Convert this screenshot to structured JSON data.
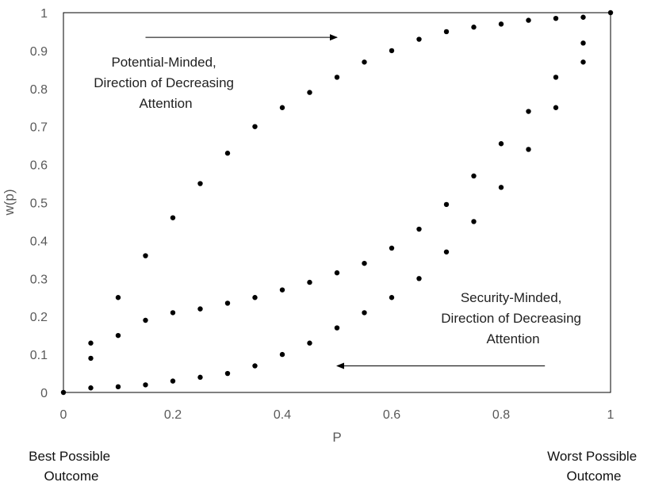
{
  "chart_data": {
    "type": "scatter",
    "xlabel": "P",
    "ylabel": "w(p)",
    "xlim": [
      0,
      1
    ],
    "ylim": [
      0,
      1
    ],
    "x_ticks": [
      "0",
      "0.2",
      "0.4",
      "0.6",
      "0.8",
      "1"
    ],
    "y_ticks": [
      "0",
      "0.1",
      "0.2",
      "0.3",
      "0.4",
      "0.5",
      "0.6",
      "0.7",
      "0.8",
      "0.9",
      "1"
    ],
    "grid": false,
    "series": [
      {
        "values": [
          [
            0,
            0
          ],
          [
            0.05,
            0.13
          ],
          [
            0.1,
            0.25
          ],
          [
            0.15,
            0.36
          ],
          [
            0.2,
            0.46
          ],
          [
            0.25,
            0.55
          ],
          [
            0.3,
            0.63
          ],
          [
            0.35,
            0.7
          ],
          [
            0.4,
            0.75
          ],
          [
            0.45,
            0.79
          ],
          [
            0.5,
            0.83
          ],
          [
            0.55,
            0.87
          ],
          [
            0.6,
            0.9
          ],
          [
            0.65,
            0.93
          ],
          [
            0.7,
            0.95
          ],
          [
            0.75,
            0.962
          ],
          [
            0.8,
            0.97
          ],
          [
            0.85,
            0.98
          ],
          [
            0.9,
            0.985
          ],
          [
            0.95,
            0.988
          ],
          [
            1,
            1
          ]
        ]
      },
      {
        "values": [
          [
            0.05,
            0.09
          ],
          [
            0.1,
            0.15
          ],
          [
            0.15,
            0.19
          ],
          [
            0.2,
            0.21
          ],
          [
            0.25,
            0.22
          ],
          [
            0.3,
            0.235
          ],
          [
            0.35,
            0.25
          ],
          [
            0.4,
            0.27
          ],
          [
            0.45,
            0.29
          ],
          [
            0.5,
            0.315
          ],
          [
            0.55,
            0.34
          ],
          [
            0.6,
            0.38
          ],
          [
            0.65,
            0.43
          ],
          [
            0.7,
            0.495
          ],
          [
            0.75,
            0.57
          ],
          [
            0.8,
            0.655
          ],
          [
            0.85,
            0.74
          ],
          [
            0.9,
            0.83
          ],
          [
            0.95,
            0.92
          ]
        ]
      },
      {
        "values": [
          [
            0.05,
            0.012
          ],
          [
            0.1,
            0.015
          ],
          [
            0.15,
            0.02
          ],
          [
            0.2,
            0.03
          ],
          [
            0.25,
            0.04
          ],
          [
            0.3,
            0.05
          ],
          [
            0.35,
            0.07
          ],
          [
            0.4,
            0.1
          ],
          [
            0.45,
            0.13
          ],
          [
            0.5,
            0.17
          ],
          [
            0.55,
            0.21
          ],
          [
            0.6,
            0.25
          ],
          [
            0.65,
            0.3
          ],
          [
            0.7,
            0.37
          ],
          [
            0.75,
            0.45
          ],
          [
            0.8,
            0.54
          ],
          [
            0.85,
            0.64
          ],
          [
            0.9,
            0.75
          ],
          [
            0.95,
            0.87
          ]
        ]
      }
    ],
    "annotations": {
      "potential": [
        "Potential-Minded,",
        "Direction of Decreasing",
        "Attention"
      ],
      "security": [
        "Security-Minded,",
        "Direction of Decreasing",
        "Attention"
      ],
      "best_outcome": [
        "Best Possible",
        "Outcome"
      ],
      "worst_outcome": [
        "Worst Possible",
        "Outcome"
      ]
    },
    "arrows": [
      {
        "direction": "right",
        "from": [
          0.15,
          0.935
        ],
        "to": [
          0.5,
          0.935
        ]
      },
      {
        "direction": "left",
        "from": [
          0.88,
          0.07
        ],
        "to": [
          0.5,
          0.07
        ]
      }
    ],
    "colors": {
      "points": "#000000",
      "axis": "#595959",
      "frame": "#000000"
    }
  }
}
